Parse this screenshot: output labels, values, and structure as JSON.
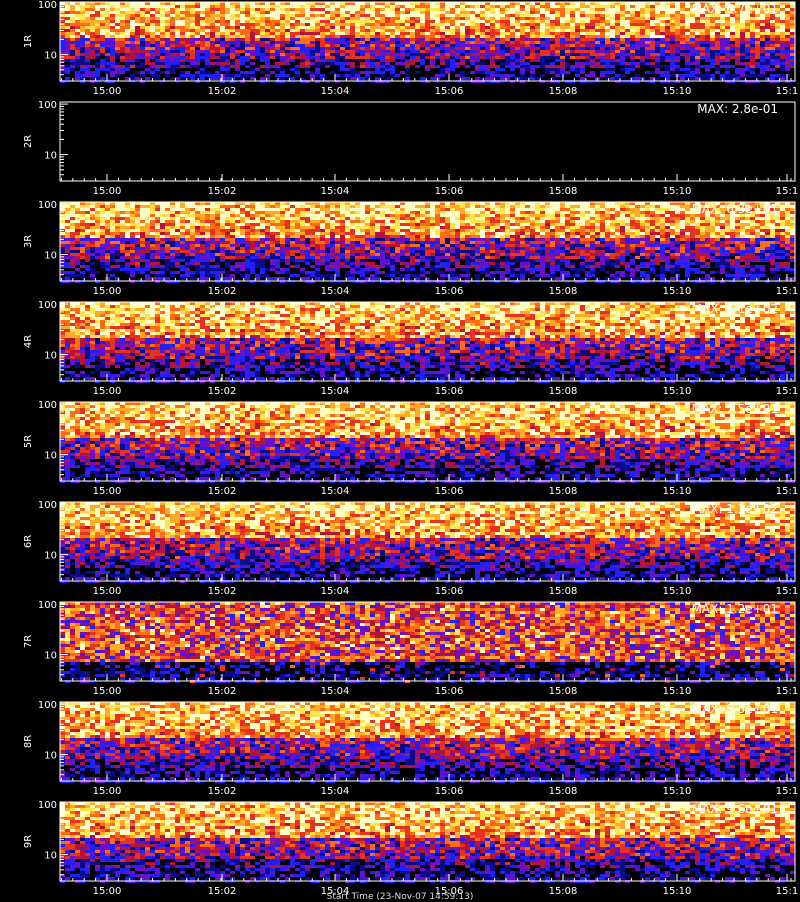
{
  "chart_data": {
    "type": "heatmap",
    "description_free": true,
    "x_axis": {
      "ticks": [
        "15:00",
        "15:02",
        "15:04",
        "15:06",
        "15:08",
        "15:10",
        "15:1"
      ],
      "label": "Start Time (23-Nov-07 14:59:13)"
    },
    "y_axis": {
      "scale": "log",
      "ticks": [
        "10",
        "100"
      ],
      "range": [
        3,
        110
      ]
    },
    "colormap": [
      "#000000",
      "#0a0a8c",
      "#2020ff",
      "#6a10c8",
      "#b4143c",
      "#e6321e",
      "#ff6a14",
      "#ffaa28",
      "#ffe650",
      "#ffffc8"
    ],
    "panels": [
      {
        "label": "1R",
        "max_text": "MAX: 6.7e+01"
      },
      {
        "label": "2R",
        "max_text": "MAX: 2.8e-01"
      },
      {
        "label": "3R",
        "max_text": "MAX: 6.3e+01"
      },
      {
        "label": "4R",
        "max_text": "MAX: 1.1e+02"
      },
      {
        "label": "5R",
        "max_text": "MAX: 7.5e+01"
      },
      {
        "label": "6R",
        "max_text": "MAX: 1.1e+02"
      },
      {
        "label": "7R",
        "max_text": "MAX: 1.2e+01"
      },
      {
        "label": "8R",
        "max_text": "MAX: 8.5e+01"
      },
      {
        "label": "9R",
        "max_text": "MAX: 9.6e+01"
      }
    ]
  }
}
